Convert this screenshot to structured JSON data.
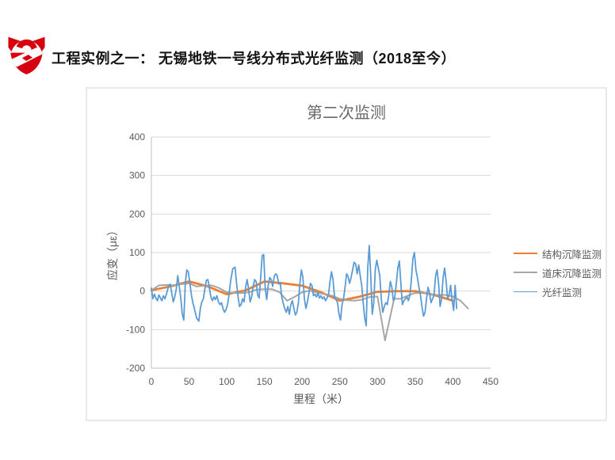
{
  "slide": {
    "title": "工程实例之一： 无锡地铁一号线分布式光纤监测（2018至今）",
    "logo": {
      "icon": "company-logo-icon",
      "color": "#d7000f"
    }
  },
  "chart_data": {
    "type": "line",
    "title": "第二次监测",
    "xlabel": "里程（米）",
    "ylabel": "应变（με）",
    "xlim": [
      0,
      450
    ],
    "ylim": [
      -200,
      400
    ],
    "x_ticks": [
      0,
      50,
      100,
      150,
      200,
      250,
      300,
      350,
      400,
      450
    ],
    "y_ticks": [
      400,
      300,
      200,
      100,
      0,
      -100,
      -200
    ],
    "grid": "horizontal",
    "legend_position": "right",
    "colors": {
      "grid": "#d9d9d9",
      "axis": "#bfbfbf",
      "text": "#595959",
      "title": "#6a6a6a"
    },
    "series": [
      {
        "name": "结构沉降监测",
        "color": "#ed7d31",
        "width": 2.75,
        "x": [
          0,
          25,
          50,
          75,
          100,
          125,
          150,
          175,
          200,
          225,
          250,
          275,
          300,
          325,
          350,
          375,
          400
        ],
        "y": [
          2,
          12,
          25,
          12,
          -8,
          2,
          25,
          20,
          14,
          -3,
          -25,
          -15,
          -2,
          0,
          0,
          -10,
          -25
        ]
      },
      {
        "name": "道床沉降监测",
        "color": "#a6a6a6",
        "width": 2,
        "x": [
          0,
          10,
          20,
          30,
          40,
          50,
          60,
          70,
          80,
          90,
          100,
          110,
          120,
          130,
          140,
          150,
          160,
          170,
          180,
          190,
          200,
          210,
          220,
          230,
          240,
          250,
          260,
          270,
          280,
          290,
          300,
          310,
          322,
          330,
          340,
          350,
          360,
          370,
          380,
          390,
          400,
          410,
          420
        ],
        "y": [
          2,
          15,
          16,
          15,
          18,
          20,
          12,
          14,
          15,
          8,
          -3,
          -5,
          -5,
          -3,
          4,
          5,
          5,
          -3,
          -25,
          -15,
          -3,
          1,
          -4,
          -8,
          -12,
          -20,
          -24,
          -25,
          -22,
          -15,
          -14,
          -128,
          -20,
          -20,
          -12,
          -5,
          -5,
          -8,
          -10,
          -10,
          -14,
          -25,
          -45
        ]
      },
      {
        "name": "光纤监测",
        "color": "#5b9bd5",
        "width": 1.8,
        "x": [
          0,
          2,
          4,
          6,
          8,
          10,
          12,
          14,
          16,
          18,
          20,
          23,
          25,
          27,
          29,
          31,
          33,
          35,
          37,
          39,
          41,
          43,
          45,
          47,
          49,
          51,
          53,
          55,
          57,
          60,
          63,
          65,
          67,
          69,
          71,
          73,
          75,
          77,
          79,
          81,
          83,
          85,
          87,
          89,
          91,
          93,
          95,
          97,
          99,
          101,
          103,
          105,
          108,
          111,
          113,
          115,
          117,
          119,
          121,
          123,
          125,
          127,
          129,
          131,
          133,
          135,
          137,
          139,
          141,
          143,
          145,
          147,
          149,
          151,
          153,
          155,
          157,
          159,
          161,
          163,
          165,
          167,
          169,
          171,
          173,
          175,
          177,
          179,
          181,
          183,
          185,
          187,
          189,
          191,
          193,
          195,
          197,
          199,
          201,
          203,
          205,
          207,
          209,
          211,
          213,
          215,
          217,
          219,
          221,
          223,
          225,
          227,
          229,
          231,
          233,
          235,
          237,
          239,
          241,
          243,
          245,
          247,
          249,
          251,
          253,
          255,
          257,
          259,
          261,
          263,
          265,
          267,
          269,
          271,
          273,
          275,
          277,
          279,
          281,
          283,
          285,
          287,
          289,
          291,
          293,
          295,
          297,
          299,
          301,
          303,
          305,
          307,
          309,
          311,
          313,
          315,
          317,
          319,
          321,
          323,
          325,
          327,
          329,
          331,
          333,
          335,
          337,
          339,
          341,
          343,
          345,
          347,
          349,
          351,
          353,
          355,
          357,
          359,
          361,
          363,
          365,
          367,
          369,
          371,
          373,
          375,
          377,
          379,
          381,
          383,
          385,
          387,
          389,
          391,
          393,
          395,
          397,
          399,
          401,
          403,
          405
        ],
        "y": [
          8,
          -20,
          -8,
          -18,
          -25,
          -10,
          -18,
          -25,
          -12,
          -20,
          -8,
          15,
          18,
          -5,
          -28,
          -15,
          5,
          40,
          12,
          -18,
          -60,
          -75,
          20,
          55,
          50,
          22,
          -8,
          -30,
          -45,
          -70,
          -78,
          -45,
          -28,
          -20,
          5,
          28,
          30,
          8,
          -15,
          -25,
          -15,
          -22,
          -12,
          -28,
          -35,
          -30,
          -45,
          -55,
          -48,
          -35,
          -10,
          25,
          58,
          62,
          20,
          -15,
          -40,
          -35,
          -20,
          -28,
          10,
          30,
          5,
          -28,
          -15,
          12,
          30,
          25,
          -10,
          -18,
          35,
          92,
          95,
          10,
          -22,
          15,
          35,
          30,
          12,
          38,
          45,
          40,
          18,
          22,
          -15,
          -32,
          -45,
          -55,
          -40,
          -60,
          -35,
          -25,
          -45,
          -62,
          -55,
          -30,
          20,
          55,
          35,
          -20,
          -45,
          -28,
          -5,
          20,
          15,
          -12,
          -8,
          -15,
          -5,
          -18,
          -12,
          -20,
          -15,
          -25,
          -18,
          -10,
          25,
          50,
          30,
          -15,
          -22,
          -30,
          -60,
          -75,
          -35,
          -20,
          10,
          45,
          38,
          20,
          35,
          55,
          75,
          70,
          45,
          68,
          40,
          15,
          -30,
          -70,
          -90,
          60,
          118,
          40,
          -60,
          -30,
          55,
          80,
          60,
          40,
          -20,
          -55,
          -40,
          -30,
          -35,
          -10,
          25,
          10,
          -25,
          -15,
          20,
          60,
          78,
          20,
          -35,
          -25,
          -20,
          -15,
          -25,
          -10,
          30,
          85,
          100,
          55,
          35,
          10,
          -10,
          -40,
          -65,
          -55,
          -20,
          10,
          -5,
          -30,
          -20,
          -10,
          40,
          55,
          20,
          -40,
          -20,
          35,
          60,
          25,
          -20,
          -10,
          15,
          -25,
          -50,
          15,
          -45
        ]
      }
    ]
  }
}
